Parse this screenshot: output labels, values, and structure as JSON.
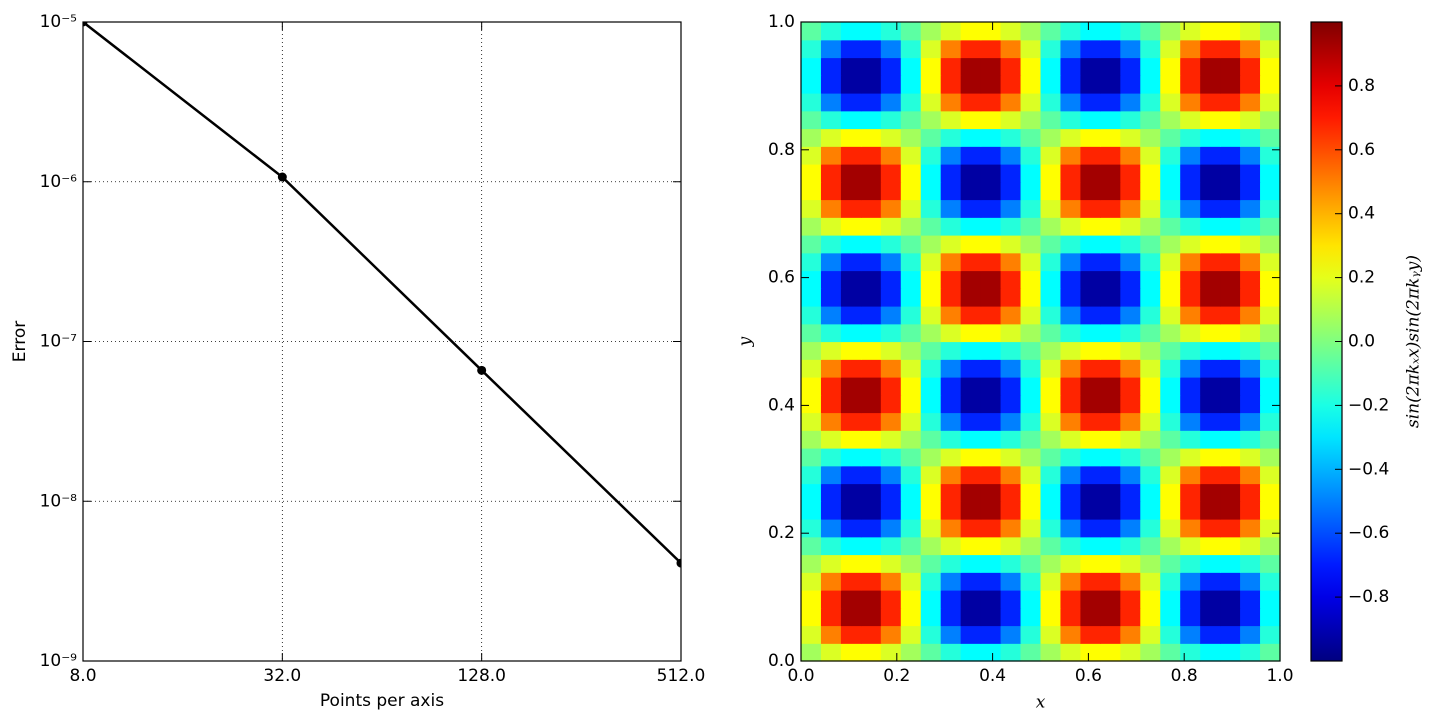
{
  "chart_data": [
    {
      "type": "line",
      "xlabel": "Points per axis",
      "ylabel": "Error",
      "x": [
        8,
        32,
        128,
        512
      ],
      "values": [
        1e-05,
        1.07e-06,
        6.6e-08,
        4.1e-09
      ],
      "color": "#000000",
      "xscale": "log",
      "yscale": "log",
      "xlim": [
        8,
        512
      ],
      "ylim": [
        1e-09,
        1e-05
      ],
      "xticks": [
        {
          "value": 8,
          "label": "8.0"
        },
        {
          "value": 32,
          "label": "32.0"
        },
        {
          "value": 128,
          "label": "128.0"
        },
        {
          "value": 512,
          "label": "512.0"
        }
      ],
      "yticks": [
        {
          "value": 1e-09,
          "label": "10⁻⁹"
        },
        {
          "value": 1e-08,
          "label": "10⁻⁸"
        },
        {
          "value": 1e-07,
          "label": "10⁻⁷"
        },
        {
          "value": 1e-06,
          "label": "10⁻⁶"
        },
        {
          "value": 1e-05,
          "label": "10⁻⁵"
        }
      ],
      "grid": true
    },
    {
      "type": "heatmap",
      "xlabel": "x",
      "ylabel": "y",
      "colormap": "jet",
      "xlim": [
        0,
        1
      ],
      "ylim": [
        0,
        1
      ],
      "xticks": [
        {
          "value": 0,
          "label": "0.0"
        },
        0.2,
        0.4,
        0.6,
        0.8,
        {
          "value": 1,
          "label": "1.0"
        }
      ],
      "yticks": [
        {
          "value": 0,
          "label": "0.0"
        },
        0.2,
        0.4,
        0.6,
        0.8,
        {
          "value": 1,
          "label": "1.0"
        }
      ],
      "clim": [
        -1,
        1
      ],
      "cticks": [
        {
          "value": -0.8,
          "label": "−0.8"
        },
        {
          "value": -0.6,
          "label": "−0.6"
        },
        {
          "value": -0.4,
          "label": "−0.4"
        },
        {
          "value": -0.2,
          "label": "−0.2"
        },
        {
          "value": 0,
          "label": "0.0"
        },
        0.2,
        0.4,
        0.6,
        0.8
      ],
      "clabel": "sin(2πkₓx)sin(2πkᵧy)",
      "z": [
        [
          0.07,
          0.18,
          0.25,
          0.25,
          0.18,
          0.07,
          -0.07,
          -0.18,
          -0.25,
          -0.25,
          -0.18,
          -0.07,
          0.07,
          0.18,
          0.25,
          0.25,
          0.18,
          0.07,
          -0.07,
          -0.18,
          -0.25,
          -0.25,
          -0.18,
          -0.07
        ],
        [
          0.18,
          0.5,
          0.68,
          0.68,
          0.5,
          0.18,
          -0.18,
          -0.5,
          -0.68,
          -0.68,
          -0.5,
          -0.18,
          0.18,
          0.5,
          0.68,
          0.68,
          0.5,
          0.18,
          -0.18,
          -0.5,
          -0.68,
          -0.68,
          -0.5,
          -0.18
        ],
        [
          0.25,
          0.68,
          0.93,
          0.93,
          0.68,
          0.25,
          -0.25,
          -0.68,
          -0.93,
          -0.93,
          -0.68,
          -0.25,
          0.25,
          0.68,
          0.93,
          0.93,
          0.68,
          0.25,
          -0.25,
          -0.68,
          -0.93,
          -0.93,
          -0.68,
          -0.25
        ],
        [
          0.25,
          0.68,
          0.93,
          0.93,
          0.68,
          0.25,
          -0.25,
          -0.68,
          -0.93,
          -0.93,
          -0.68,
          -0.25,
          0.25,
          0.68,
          0.93,
          0.93,
          0.68,
          0.25,
          -0.25,
          -0.68,
          -0.93,
          -0.93,
          -0.68,
          -0.25
        ],
        [
          0.18,
          0.5,
          0.68,
          0.68,
          0.5,
          0.18,
          -0.18,
          -0.5,
          -0.68,
          -0.68,
          -0.5,
          -0.18,
          0.18,
          0.5,
          0.68,
          0.68,
          0.5,
          0.18,
          -0.18,
          -0.5,
          -0.68,
          -0.68,
          -0.5,
          -0.18
        ],
        [
          0.07,
          0.18,
          0.25,
          0.25,
          0.18,
          0.07,
          -0.07,
          -0.18,
          -0.25,
          -0.25,
          -0.18,
          -0.07,
          0.07,
          0.18,
          0.25,
          0.25,
          0.18,
          0.07,
          -0.07,
          -0.18,
          -0.25,
          -0.25,
          -0.18,
          -0.07
        ],
        [
          -0.07,
          -0.18,
          -0.25,
          -0.25,
          -0.18,
          -0.07,
          0.07,
          0.18,
          0.25,
          0.25,
          0.18,
          0.07,
          -0.07,
          -0.18,
          -0.25,
          -0.25,
          -0.18,
          -0.07,
          0.07,
          0.18,
          0.25,
          0.25,
          0.18,
          0.07
        ],
        [
          -0.18,
          -0.5,
          -0.68,
          -0.68,
          -0.5,
          -0.18,
          0.18,
          0.5,
          0.68,
          0.68,
          0.5,
          0.18,
          -0.18,
          -0.5,
          -0.68,
          -0.68,
          -0.5,
          -0.18,
          0.18,
          0.5,
          0.68,
          0.68,
          0.5,
          0.18
        ],
        [
          -0.25,
          -0.68,
          -0.93,
          -0.93,
          -0.68,
          -0.25,
          0.25,
          0.68,
          0.93,
          0.93,
          0.68,
          0.25,
          -0.25,
          -0.68,
          -0.93,
          -0.93,
          -0.68,
          -0.25,
          0.25,
          0.68,
          0.93,
          0.93,
          0.68,
          0.25
        ],
        [
          -0.25,
          -0.68,
          -0.93,
          -0.93,
          -0.68,
          -0.25,
          0.25,
          0.68,
          0.93,
          0.93,
          0.68,
          0.25,
          -0.25,
          -0.68,
          -0.93,
          -0.93,
          -0.68,
          -0.25,
          0.25,
          0.68,
          0.93,
          0.93,
          0.68,
          0.25
        ],
        [
          -0.18,
          -0.5,
          -0.68,
          -0.68,
          -0.5,
          -0.18,
          0.18,
          0.5,
          0.68,
          0.68,
          0.5,
          0.18,
          -0.18,
          -0.5,
          -0.68,
          -0.68,
          -0.5,
          -0.18,
          0.18,
          0.5,
          0.68,
          0.68,
          0.5,
          0.18
        ],
        [
          -0.07,
          -0.18,
          -0.25,
          -0.25,
          -0.18,
          -0.07,
          0.07,
          0.18,
          0.25,
          0.25,
          0.18,
          0.07,
          -0.07,
          -0.18,
          -0.25,
          -0.25,
          -0.18,
          -0.07,
          0.07,
          0.18,
          0.25,
          0.25,
          0.18,
          0.07
        ],
        [
          0.07,
          0.18,
          0.25,
          0.25,
          0.18,
          0.07,
          -0.07,
          -0.18,
          -0.25,
          -0.25,
          -0.18,
          -0.07,
          0.07,
          0.18,
          0.25,
          0.25,
          0.18,
          0.07,
          -0.07,
          -0.18,
          -0.25,
          -0.25,
          -0.18,
          -0.07
        ],
        [
          0.18,
          0.5,
          0.68,
          0.68,
          0.5,
          0.18,
          -0.18,
          -0.5,
          -0.68,
          -0.68,
          -0.5,
          -0.18,
          0.18,
          0.5,
          0.68,
          0.68,
          0.5,
          0.18,
          -0.18,
          -0.5,
          -0.68,
          -0.68,
          -0.5,
          -0.18
        ],
        [
          0.25,
          0.68,
          0.93,
          0.93,
          0.68,
          0.25,
          -0.25,
          -0.68,
          -0.93,
          -0.93,
          -0.68,
          -0.25,
          0.25,
          0.68,
          0.93,
          0.93,
          0.68,
          0.25,
          -0.25,
          -0.68,
          -0.93,
          -0.93,
          -0.68,
          -0.25
        ],
        [
          0.25,
          0.68,
          0.93,
          0.93,
          0.68,
          0.25,
          -0.25,
          -0.68,
          -0.93,
          -0.93,
          -0.68,
          -0.25,
          0.25,
          0.68,
          0.93,
          0.93,
          0.68,
          0.25,
          -0.25,
          -0.68,
          -0.93,
          -0.93,
          -0.68,
          -0.25
        ],
        [
          0.18,
          0.5,
          0.68,
          0.68,
          0.5,
          0.18,
          -0.18,
          -0.5,
          -0.68,
          -0.68,
          -0.5,
          -0.18,
          0.18,
          0.5,
          0.68,
          0.68,
          0.5,
          0.18,
          -0.18,
          -0.5,
          -0.68,
          -0.68,
          -0.5,
          -0.18
        ],
        [
          0.07,
          0.18,
          0.25,
          0.25,
          0.18,
          0.07,
          -0.07,
          -0.18,
          -0.25,
          -0.25,
          -0.18,
          -0.07,
          0.07,
          0.18,
          0.25,
          0.25,
          0.18,
          0.07,
          -0.07,
          -0.18,
          -0.25,
          -0.25,
          -0.18,
          -0.07
        ],
        [
          -0.07,
          -0.18,
          -0.25,
          -0.25,
          -0.18,
          -0.07,
          0.07,
          0.18,
          0.25,
          0.25,
          0.18,
          0.07,
          -0.07,
          -0.18,
          -0.25,
          -0.25,
          -0.18,
          -0.07,
          0.07,
          0.18,
          0.25,
          0.25,
          0.18,
          0.07
        ],
        [
          -0.18,
          -0.5,
          -0.68,
          -0.68,
          -0.5,
          -0.18,
          0.18,
          0.5,
          0.68,
          0.68,
          0.5,
          0.18,
          -0.18,
          -0.5,
          -0.68,
          -0.68,
          -0.5,
          -0.18,
          0.18,
          0.5,
          0.68,
          0.68,
          0.5,
          0.18
        ],
        [
          -0.25,
          -0.68,
          -0.93,
          -0.93,
          -0.68,
          -0.25,
          0.25,
          0.68,
          0.93,
          0.93,
          0.68,
          0.25,
          -0.25,
          -0.68,
          -0.93,
          -0.93,
          -0.68,
          -0.25,
          0.25,
          0.68,
          0.93,
          0.93,
          0.68,
          0.25
        ],
        [
          -0.25,
          -0.68,
          -0.93,
          -0.93,
          -0.68,
          -0.25,
          0.25,
          0.68,
          0.93,
          0.93,
          0.68,
          0.25,
          -0.25,
          -0.68,
          -0.93,
          -0.93,
          -0.68,
          -0.25,
          0.25,
          0.68,
          0.93,
          0.93,
          0.68,
          0.25
        ],
        [
          -0.18,
          -0.5,
          -0.68,
          -0.68,
          -0.5,
          -0.18,
          0.18,
          0.5,
          0.68,
          0.68,
          0.5,
          0.18,
          -0.18,
          -0.5,
          -0.68,
          -0.68,
          -0.5,
          -0.18,
          0.18,
          0.5,
          0.68,
          0.68,
          0.5,
          0.18
        ],
        [
          -0.07,
          -0.18,
          -0.25,
          -0.25,
          -0.18,
          -0.07,
          0.07,
          0.18,
          0.25,
          0.25,
          0.18,
          0.07,
          -0.07,
          -0.18,
          -0.25,
          -0.25,
          -0.18,
          -0.07,
          0.07,
          0.18,
          0.25,
          0.25,
          0.18,
          0.07
        ],
        [
          0.07,
          0.18,
          0.25,
          0.25,
          0.18,
          0.07,
          -0.07,
          -0.18,
          -0.25,
          -0.25,
          -0.18,
          -0.07,
          0.07,
          0.18,
          0.25,
          0.25,
          0.18,
          0.07,
          -0.07,
          -0.18,
          -0.25,
          -0.25,
          -0.18,
          -0.07
        ],
        [
          0.18,
          0.5,
          0.68,
          0.68,
          0.5,
          0.18,
          -0.18,
          -0.5,
          -0.68,
          -0.68,
          -0.5,
          -0.18,
          0.18,
          0.5,
          0.68,
          0.68,
          0.5,
          0.18,
          -0.18,
          -0.5,
          -0.68,
          -0.68,
          -0.5,
          -0.18
        ],
        [
          0.25,
          0.68,
          0.93,
          0.93,
          0.68,
          0.25,
          -0.25,
          -0.68,
          -0.93,
          -0.93,
          -0.68,
          -0.25,
          0.25,
          0.68,
          0.93,
          0.93,
          0.68,
          0.25,
          -0.25,
          -0.68,
          -0.93,
          -0.93,
          -0.68,
          -0.25
        ],
        [
          0.25,
          0.68,
          0.93,
          0.93,
          0.68,
          0.25,
          -0.25,
          -0.68,
          -0.93,
          -0.93,
          -0.68,
          -0.25,
          0.25,
          0.68,
          0.93,
          0.93,
          0.68,
          0.25,
          -0.25,
          -0.68,
          -0.93,
          -0.93,
          -0.68,
          -0.25
        ],
        [
          0.18,
          0.5,
          0.68,
          0.68,
          0.5,
          0.18,
          -0.18,
          -0.5,
          -0.68,
          -0.68,
          -0.5,
          -0.18,
          0.18,
          0.5,
          0.68,
          0.68,
          0.5,
          0.18,
          -0.18,
          -0.5,
          -0.68,
          -0.68,
          -0.5,
          -0.18
        ],
        [
          0.07,
          0.18,
          0.25,
          0.25,
          0.18,
          0.07,
          -0.07,
          -0.18,
          -0.25,
          -0.25,
          -0.18,
          -0.07,
          0.07,
          0.18,
          0.25,
          0.25,
          0.18,
          0.07,
          -0.07,
          -0.18,
          -0.25,
          -0.25,
          -0.18,
          -0.07
        ],
        [
          -0.07,
          -0.18,
          -0.25,
          -0.25,
          -0.18,
          -0.07,
          0.07,
          0.18,
          0.25,
          0.25,
          0.18,
          0.07,
          -0.07,
          -0.18,
          -0.25,
          -0.25,
          -0.18,
          -0.07,
          0.07,
          0.18,
          0.25,
          0.25,
          0.18,
          0.07
        ],
        [
          -0.18,
          -0.5,
          -0.68,
          -0.68,
          -0.5,
          -0.18,
          0.18,
          0.5,
          0.68,
          0.68,
          0.5,
          0.18,
          -0.18,
          -0.5,
          -0.68,
          -0.68,
          -0.5,
          -0.18,
          0.18,
          0.5,
          0.68,
          0.68,
          0.5,
          0.18
        ],
        [
          -0.25,
          -0.68,
          -0.93,
          -0.93,
          -0.68,
          -0.25,
          0.25,
          0.68,
          0.93,
          0.93,
          0.68,
          0.25,
          -0.25,
          -0.68,
          -0.93,
          -0.93,
          -0.68,
          -0.25,
          0.25,
          0.68,
          0.93,
          0.93,
          0.68,
          0.25
        ],
        [
          -0.25,
          -0.68,
          -0.93,
          -0.93,
          -0.68,
          -0.25,
          0.25,
          0.68,
          0.93,
          0.93,
          0.68,
          0.25,
          -0.25,
          -0.68,
          -0.93,
          -0.93,
          -0.68,
          -0.25,
          0.25,
          0.68,
          0.93,
          0.93,
          0.68,
          0.25
        ],
        [
          -0.18,
          -0.5,
          -0.68,
          -0.68,
          -0.5,
          -0.18,
          0.18,
          0.5,
          0.68,
          0.68,
          0.5,
          0.18,
          -0.18,
          -0.5,
          -0.68,
          -0.68,
          -0.5,
          -0.18,
          0.18,
          0.5,
          0.68,
          0.68,
          0.5,
          0.18
        ],
        [
          -0.07,
          -0.18,
          -0.25,
          -0.25,
          -0.18,
          -0.07,
          0.07,
          0.18,
          0.25,
          0.25,
          0.18,
          0.07,
          -0.07,
          -0.18,
          -0.25,
          -0.25,
          -0.18,
          -0.07,
          0.07,
          0.18,
          0.25,
          0.25,
          0.18,
          0.07
        ]
      ]
    }
  ]
}
